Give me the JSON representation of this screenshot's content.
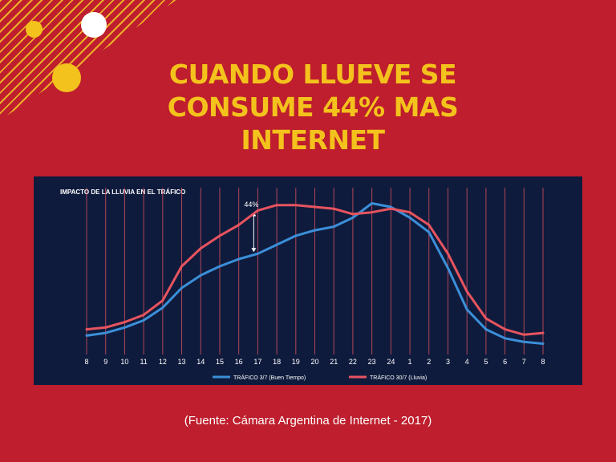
{
  "slide": {
    "title_lines": [
      "CUANDO LLUEVE SE",
      "CONSUME 44% MAS",
      "INTERNET"
    ],
    "source": "(Fuente: Cámara Argentina de Internet - 2017)"
  },
  "colors": {
    "background": "#be1e2d",
    "accent_yellow": "#f4c21c",
    "chart_background": "#0f1b3d",
    "series_blue": "#3b8fd8",
    "series_red": "#e8545f"
  },
  "chart_data": {
    "type": "line",
    "title": "IMPACTO DE LA LLUVIA EN EL TRÁFICO",
    "categories": [
      "8",
      "9",
      "10",
      "11",
      "12",
      "13",
      "14",
      "15",
      "16",
      "17",
      "18",
      "19",
      "20",
      "21",
      "22",
      "23",
      "24",
      "1",
      "2",
      "3",
      "4",
      "5",
      "6",
      "7",
      "8"
    ],
    "series": [
      {
        "name": "TRÁFICO 3/7 (Buen Tiempo)",
        "color": "#3b8fd8",
        "values": [
          0.5,
          2,
          5,
          9,
          16,
          27,
          34,
          39,
          43,
          46,
          51,
          56,
          59,
          61,
          66,
          74,
          72,
          66,
          58,
          38,
          15,
          4,
          -1,
          -3,
          -4
        ]
      },
      {
        "name": "TRÁFICO 30/7 (Lluvia)",
        "color": "#e8545f",
        "values": [
          4,
          5,
          8,
          12,
          20,
          39,
          49,
          56,
          62,
          70,
          73,
          73,
          72,
          71,
          68,
          69,
          71,
          69,
          62,
          46,
          25,
          10,
          4,
          1,
          2
        ]
      }
    ],
    "annotation": {
      "text": "44%",
      "category_index": 9
    },
    "grid": "vertical lines",
    "legend": "bottom-center",
    "ylim": [
      -10,
      80
    ]
  }
}
